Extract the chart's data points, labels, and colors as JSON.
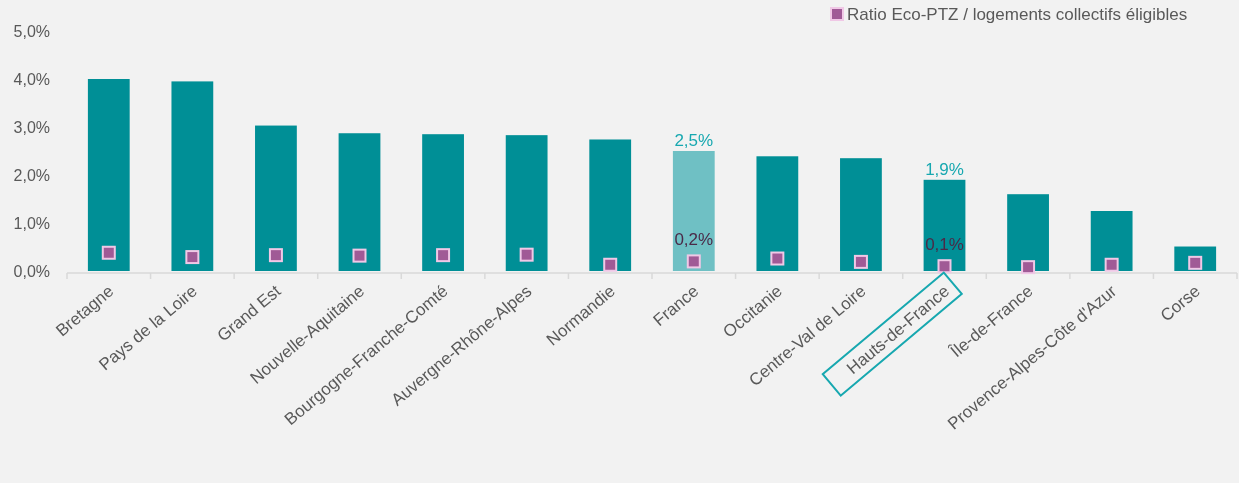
{
  "chart_data": {
    "type": "bar",
    "categories": [
      "Bretagne",
      "Pays de la Loire",
      "Grand Est",
      "Nouvelle-Aquitaine",
      "Bourgogne-Franche-Comté",
      "Auvergne-Rhône-Alpes",
      "Normandie",
      "France",
      "Occitanie",
      "Centre-Val de Loire",
      "Hauts-de-France",
      "Île-de-France",
      "Provence-Alpes-Côte d'Azur",
      "Corse"
    ],
    "series": [
      {
        "colors": [
          "#008f96",
          "#008f96",
          "#008f96",
          "#008f96",
          "#008f96",
          "#008f96",
          "#008f96",
          "#6fc0c4",
          "#008f96",
          "#008f96",
          "#008f96",
          "#008f96",
          "#008f96",
          "#008f96"
        ],
        "values": [
          4.0,
          3.95,
          3.03,
          2.87,
          2.85,
          2.83,
          2.74,
          2.5,
          2.39,
          2.35,
          1.9,
          1.6,
          1.25,
          0.51
        ],
        "value_labels": [
          null,
          null,
          null,
          null,
          null,
          null,
          null,
          "2,5%",
          null,
          null,
          "1,9%",
          null,
          null,
          null
        ]
      },
      {
        "type": "scatter",
        "name": "Ratio Eco-PTZ / logements collectifs éligibles",
        "color": "#a05a96",
        "marker": "square",
        "values": [
          0.38,
          0.29,
          0.33,
          0.32,
          0.33,
          0.34,
          0.13,
          0.2,
          0.26,
          0.19,
          0.1,
          0.08,
          0.13,
          0.17
        ],
        "value_labels": [
          null,
          null,
          null,
          null,
          null,
          null,
          null,
          "0,2%",
          null,
          null,
          "0,1%",
          null,
          null,
          null
        ]
      }
    ],
    "ylim": [
      0,
      5
    ],
    "yticks": [
      {
        "value": 0,
        "label": "0,0%"
      },
      {
        "value": 1,
        "label": "1,0%"
      },
      {
        "value": 2,
        "label": "2,0%"
      },
      {
        "value": 3,
        "label": "3,0%"
      },
      {
        "value": 4,
        "label": "4,0%"
      },
      {
        "value": 5,
        "label": "5,0%"
      }
    ],
    "grid": false,
    "legend": "top right"
  }
}
